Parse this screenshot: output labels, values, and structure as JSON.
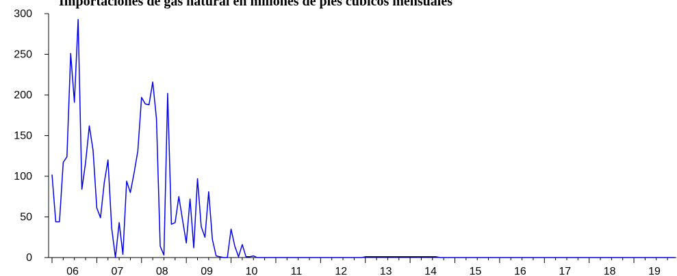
{
  "chart_data": {
    "type": "line",
    "title": "Importaciones de gas natural en millones de pies cúbicos mensuales",
    "xlabel": "",
    "ylabel": "",
    "ylim": [
      0,
      300
    ],
    "yticks": [
      0,
      50,
      100,
      150,
      200,
      250,
      300
    ],
    "grid": false,
    "x_tick_labels": [
      "06",
      "07",
      "08",
      "09",
      "10",
      "11",
      "12",
      "13",
      "14",
      "15",
      "16",
      "17",
      "18",
      "19"
    ],
    "x_start_year": 2006,
    "x_start_month": 1,
    "series_color": "#0000ee",
    "series": [
      {
        "values": [
          102,
          44,
          44,
          117,
          124,
          251,
          191,
          293,
          84,
          117,
          162,
          132,
          61,
          49,
          92,
          120,
          36,
          0,
          43,
          4,
          94,
          80,
          104,
          131,
          197,
          189,
          188,
          216,
          171,
          14,
          3,
          202,
          41,
          43,
          75,
          46,
          18,
          72,
          12,
          97,
          38,
          25,
          81,
          22,
          2,
          1,
          0,
          0,
          35,
          14,
          1,
          16,
          1,
          1,
          2,
          0,
          0,
          0,
          0,
          0,
          0,
          0,
          0,
          0,
          0,
          0,
          0,
          0,
          0,
          0,
          0,
          0,
          0,
          0,
          0,
          0,
          0,
          0,
          0,
          0,
          0,
          0,
          0,
          0,
          1,
          1,
          1,
          1,
          1,
          1,
          1,
          1,
          1,
          1,
          1,
          1,
          1,
          1,
          1,
          1,
          1,
          1,
          1,
          1,
          0,
          0,
          0,
          0,
          0,
          0,
          0,
          0,
          0,
          0,
          0,
          0,
          0,
          0,
          0,
          0,
          0,
          0,
          0,
          0,
          0,
          0,
          0,
          0,
          0,
          0,
          0,
          0,
          0,
          0,
          0,
          0,
          0,
          0,
          0,
          0,
          0,
          0,
          0,
          0,
          0,
          0,
          0,
          0,
          0,
          0,
          0,
          0,
          0,
          0,
          0,
          0,
          0,
          0,
          0,
          0,
          0,
          0,
          0,
          0,
          0,
          0,
          0,
          0
        ]
      }
    ]
  }
}
